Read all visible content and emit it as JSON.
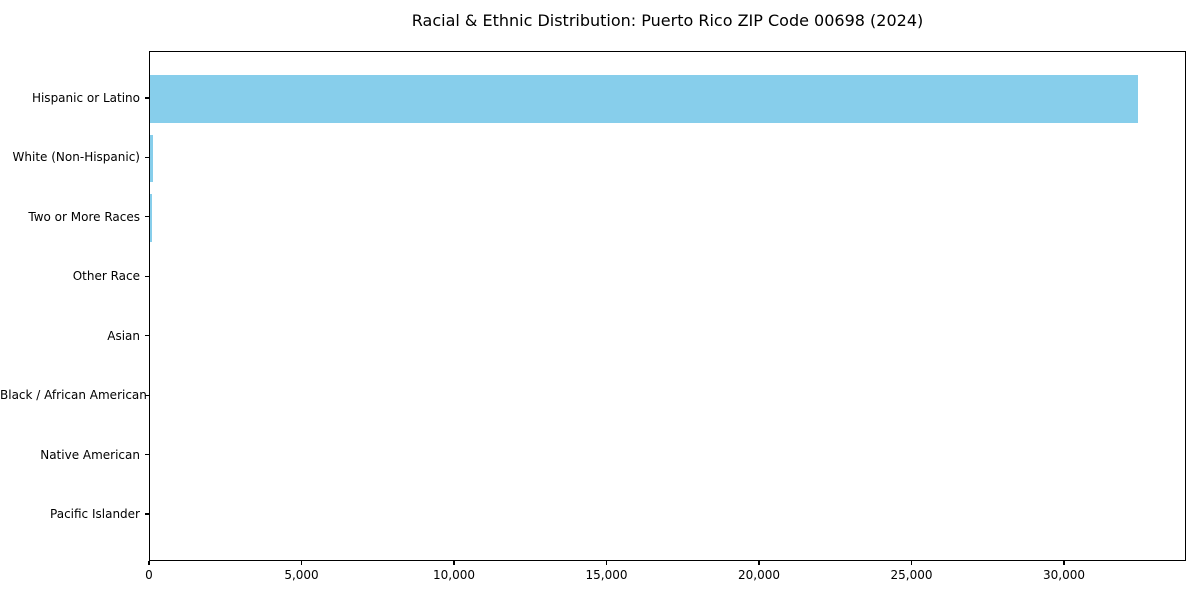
{
  "chart_data": {
    "type": "bar",
    "orientation": "horizontal",
    "title": "Racial & Ethnic Distribution: Puerto Rico ZIP Code 00698 (2024)",
    "categories": [
      "Hispanic or Latino",
      "White (Non-Hispanic)",
      "Two or More Races",
      "Other Race",
      "Asian",
      "Black / African American",
      "Native American",
      "Pacific Islander"
    ],
    "values": [
      32400,
      110,
      60,
      0,
      0,
      0,
      0,
      0
    ],
    "xlabel": "",
    "ylabel": "",
    "xlim": [
      0,
      34000
    ],
    "x_ticks": [
      0,
      5000,
      10000,
      15000,
      20000,
      25000,
      30000
    ],
    "x_tick_labels": [
      "0",
      "5,000",
      "10,000",
      "15,000",
      "20,000",
      "25,000",
      "30,000"
    ],
    "bar_color": "#87CEEB",
    "background_color": "#ffffff",
    "text_color": "#000000",
    "grid": false,
    "legend": "none"
  }
}
